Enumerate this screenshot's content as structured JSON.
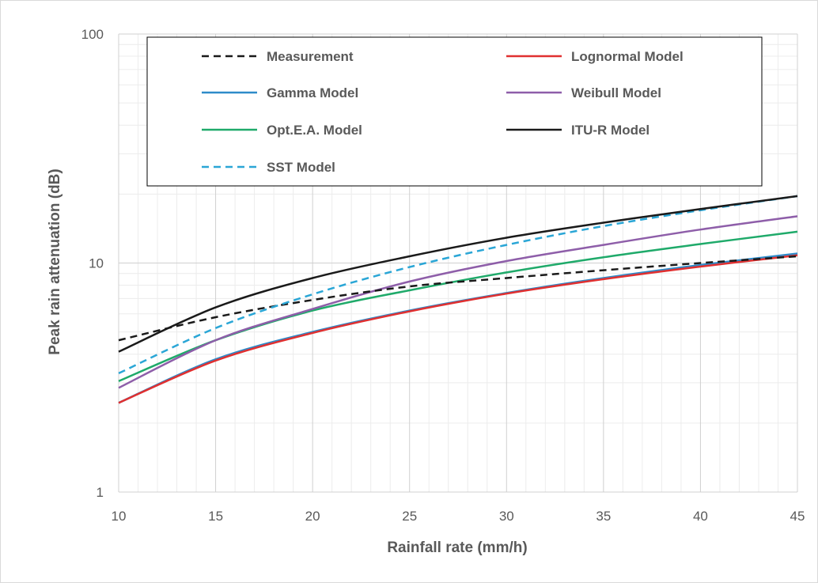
{
  "chart_data": {
    "type": "line",
    "xlabel": "Rainfall rate (mm/h)",
    "ylabel": "Peak rain attenuation (dB)",
    "xlim": [
      10,
      45
    ],
    "ylim": [
      1,
      100
    ],
    "yscale": "log",
    "grid": true,
    "legend_position": "top",
    "x_ticks": [
      "10",
      "15",
      "20",
      "25",
      "30",
      "35",
      "40",
      "45"
    ],
    "y_ticks": [
      "1",
      "10",
      "100"
    ],
    "x": [
      10,
      15,
      20,
      25,
      30,
      35,
      40,
      45
    ],
    "series": [
      {
        "name": "Measurement",
        "color": "#1a1a1a",
        "dash": "dashed",
        "values": [
          4.6,
          5.8,
          6.9,
          7.9,
          8.6,
          9.3,
          10.0,
          10.7
        ]
      },
      {
        "name": "Lognormal Model",
        "color": "#e03030",
        "dash": "solid",
        "values": [
          2.45,
          3.75,
          4.95,
          6.15,
          7.35,
          8.5,
          9.65,
          10.8
        ]
      },
      {
        "name": "Gamma Model",
        "color": "#2e8bc9",
        "dash": "solid",
        "values": [
          2.45,
          3.8,
          5.0,
          6.2,
          7.4,
          8.6,
          9.8,
          11.0
        ]
      },
      {
        "name": "Weibull Model",
        "color": "#8e5ea9",
        "dash": "solid",
        "values": [
          2.85,
          4.6,
          6.3,
          8.3,
          10.2,
          12.0,
          14.0,
          16.0
        ]
      },
      {
        "name": "Opt.E.A. Model",
        "color": "#1faa6a",
        "dash": "solid",
        "values": [
          3.05,
          4.6,
          6.2,
          7.6,
          9.1,
          10.6,
          12.1,
          13.7
        ]
      },
      {
        "name": "ITU-R Model",
        "color": "#1a1a1a",
        "dash": "solid",
        "values": [
          4.1,
          6.4,
          8.6,
          10.7,
          12.9,
          15.0,
          17.2,
          19.6
        ]
      },
      {
        "name": "SST Model",
        "color": "#2aa6d6",
        "dash": "dashed",
        "values": [
          3.3,
          5.2,
          7.3,
          9.6,
          12.0,
          14.5,
          17.0,
          19.6
        ]
      }
    ]
  }
}
